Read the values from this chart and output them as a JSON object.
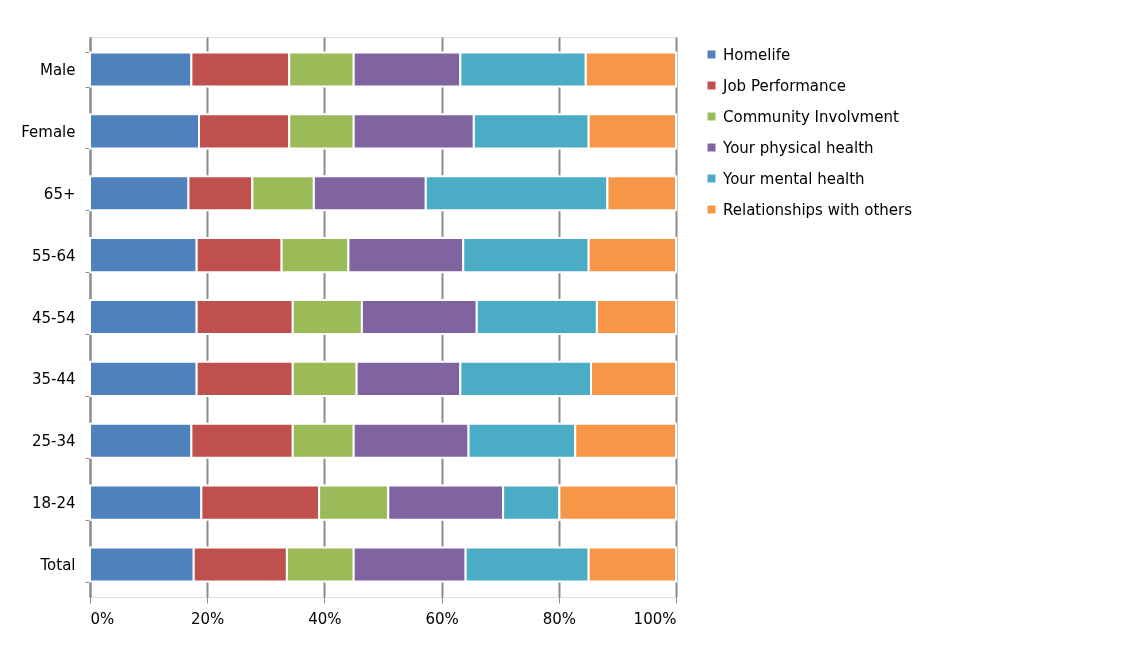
{
  "chart_data": {
    "type": "bar",
    "orientation": "horizontal",
    "stacked": true,
    "categories": [
      "Male",
      "Female",
      "65+",
      "55-64",
      "45-54",
      "35-44",
      "25-34",
      "18-24",
      "Total"
    ],
    "series": [
      {
        "name": "Homelife",
        "color": "#4f81bd",
        "values": [
          17.3,
          18.6,
          16.8,
          18.2,
          18.2,
          18.2,
          17.3,
          19.0,
          17.7
        ]
      },
      {
        "name": "Job Performance",
        "color": "#c0504d",
        "values": [
          16.7,
          15.4,
          10.9,
          14.5,
          16.4,
          16.4,
          17.3,
          20.1,
          15.9
        ]
      },
      {
        "name": "Community Involvment",
        "color": "#9bbb59",
        "values": [
          11.0,
          11.0,
          10.5,
          11.4,
          11.8,
          10.9,
          10.4,
          11.8,
          11.4
        ]
      },
      {
        "name": "Your physical health",
        "color": "#8064a2",
        "values": [
          18.2,
          20.5,
          19.1,
          19.6,
          19.6,
          17.7,
          19.6,
          19.6,
          19.1
        ]
      },
      {
        "name": "Your mental health",
        "color": "#4bacc6",
        "values": [
          21.4,
          19.6,
          31.0,
          21.4,
          20.5,
          22.3,
          18.2,
          9.6,
          21.0
        ]
      },
      {
        "name": "Relationships with others",
        "color": "#f79646",
        "values": [
          15.4,
          14.9,
          11.7,
          14.9,
          13.5,
          14.5,
          17.2,
          19.9,
          14.9
        ]
      }
    ],
    "xlim": [
      0,
      100
    ],
    "xticks": [
      {
        "value": 0,
        "label": "0%"
      },
      {
        "value": 20,
        "label": "20%"
      },
      {
        "value": 40,
        "label": "40%"
      },
      {
        "value": 60,
        "label": "60%"
      },
      {
        "value": 80,
        "label": "80%"
      },
      {
        "value": 100,
        "label": "100%"
      }
    ],
    "grid": "x",
    "legend": "right"
  }
}
